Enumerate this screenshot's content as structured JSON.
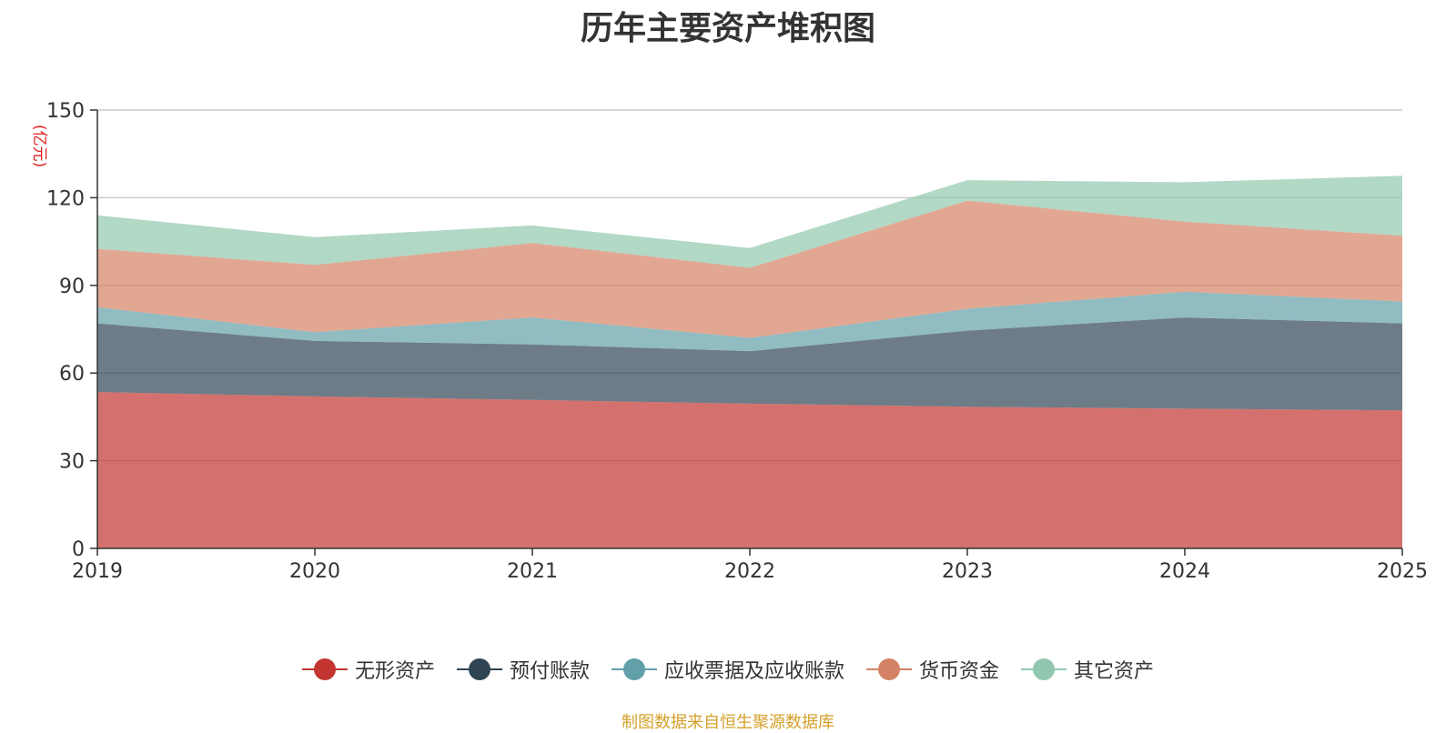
{
  "chart_data": {
    "type": "area",
    "stacked": true,
    "title": "历年主要资产堆积图",
    "unit_label": "(亿元)",
    "categories": [
      "2019",
      "2020",
      "2021",
      "2022",
      "2023",
      "2024",
      "2025"
    ],
    "ylim": [
      0,
      150
    ],
    "yticks": [
      0,
      30,
      60,
      90,
      120,
      150
    ],
    "grid": true,
    "legend_position": "bottom",
    "series": [
      {
        "name": "无形资产",
        "color": "#c23531",
        "values": [
          53.5,
          52,
          50.8,
          49.5,
          48.5,
          47.8,
          47.2
        ]
      },
      {
        "name": "预付账款",
        "color": "#2f4554",
        "values": [
          23.5,
          19,
          19,
          18,
          26,
          31.2,
          29.8
        ]
      },
      {
        "name": "应收票据及应收账款",
        "color": "#61a0a8",
        "values": [
          5.5,
          3,
          9.2,
          4.5,
          7.5,
          8.8,
          7.5
        ]
      },
      {
        "name": "货币资金",
        "color": "#d48265",
        "values": [
          20,
          23,
          25.5,
          24,
          37,
          24,
          22.5
        ]
      },
      {
        "name": "其它资产",
        "color": "#91c7ae",
        "values": [
          11.5,
          9.5,
          6,
          6.8,
          7,
          13.5,
          20.5
        ]
      }
    ]
  },
  "footer": {
    "source": "制图数据来自恒生聚源数据库"
  }
}
